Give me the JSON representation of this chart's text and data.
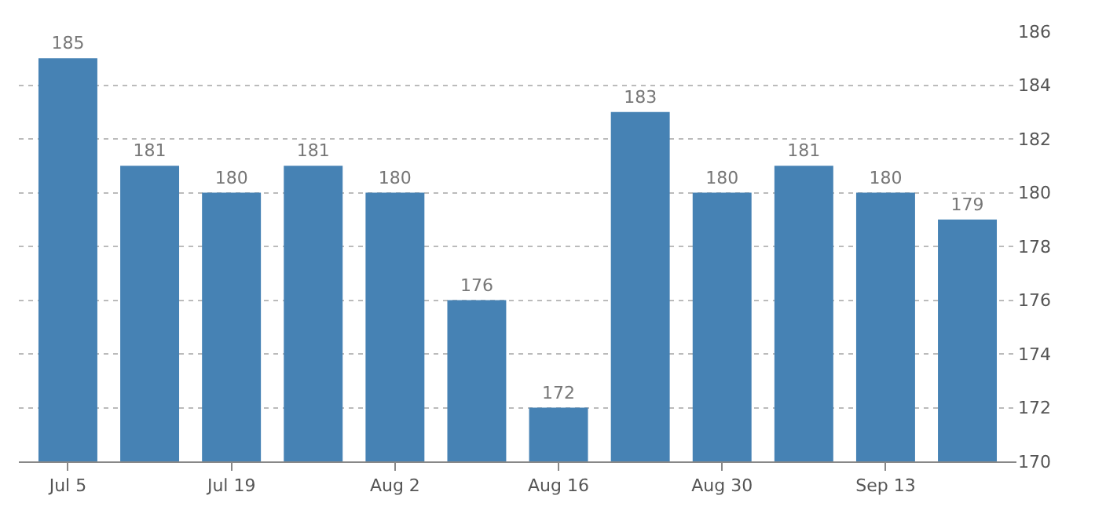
{
  "chart_data": {
    "type": "bar",
    "categories": [
      "Jul 5",
      null,
      "Jul 19",
      null,
      "Aug 2",
      null,
      "Aug 16",
      null,
      "Aug 30",
      null,
      "Sep 13",
      null
    ],
    "values": [
      185,
      181,
      180,
      181,
      180,
      176,
      172,
      183,
      180,
      181,
      180,
      179
    ],
    "color": "#4682b4",
    "ylim": [
      170,
      186
    ],
    "yticks": [
      170,
      172,
      174,
      176,
      178,
      180,
      182,
      184,
      186
    ],
    "grid": "y",
    "data_labels": true,
    "legend": false
  }
}
